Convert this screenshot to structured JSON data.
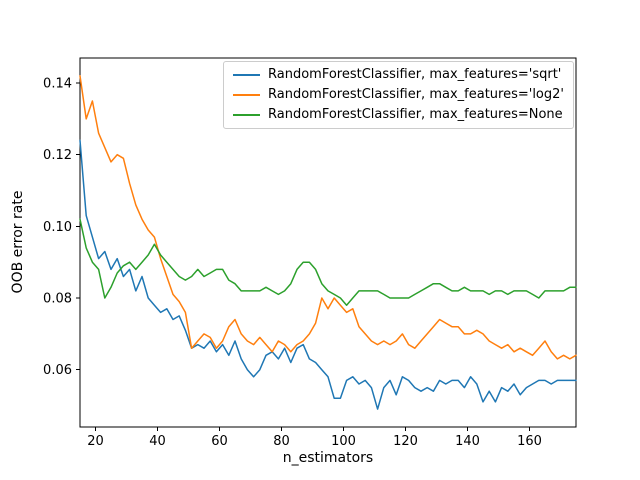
{
  "figure": {
    "background": "#ffffff"
  },
  "chart_data": {
    "type": "line",
    "title": "",
    "xlabel": "n_estimators",
    "ylabel": "OOB error rate",
    "xlim": [
      15,
      175
    ],
    "ylim": [
      0.044,
      0.147
    ],
    "xticks": [
      20,
      40,
      60,
      80,
      100,
      120,
      140,
      160
    ],
    "yticks": [
      0.06,
      0.08,
      0.1,
      0.12,
      0.14
    ],
    "grid": false,
    "legend_position": "upper right",
    "x": [
      15,
      17,
      19,
      21,
      23,
      25,
      27,
      29,
      31,
      33,
      35,
      37,
      39,
      41,
      43,
      45,
      47,
      49,
      51,
      53,
      55,
      57,
      59,
      61,
      63,
      65,
      67,
      69,
      71,
      73,
      75,
      77,
      79,
      81,
      83,
      85,
      87,
      89,
      91,
      93,
      95,
      97,
      99,
      101,
      103,
      105,
      107,
      109,
      111,
      113,
      115,
      117,
      119,
      121,
      123,
      125,
      127,
      129,
      131,
      133,
      135,
      137,
      139,
      141,
      143,
      145,
      147,
      149,
      151,
      153,
      155,
      157,
      159,
      161,
      163,
      165,
      167,
      169,
      171,
      173,
      175
    ],
    "series": [
      {
        "key": "sqrt",
        "name": "RandomForestClassifier, max_features='sqrt'",
        "color": "#1f77b4",
        "values": [
          0.124,
          0.103,
          0.097,
          0.091,
          0.093,
          0.088,
          0.091,
          0.086,
          0.088,
          0.082,
          0.086,
          0.08,
          0.078,
          0.076,
          0.077,
          0.074,
          0.075,
          0.071,
          0.066,
          0.067,
          0.066,
          0.068,
          0.065,
          0.067,
          0.064,
          0.068,
          0.063,
          0.06,
          0.058,
          0.06,
          0.064,
          0.065,
          0.063,
          0.066,
          0.062,
          0.066,
          0.067,
          0.063,
          0.062,
          0.06,
          0.058,
          0.052,
          0.052,
          0.057,
          0.058,
          0.056,
          0.057,
          0.055,
          0.049,
          0.055,
          0.057,
          0.053,
          0.058,
          0.057,
          0.055,
          0.054,
          0.055,
          0.054,
          0.057,
          0.056,
          0.057,
          0.057,
          0.055,
          0.058,
          0.056,
          0.051,
          0.054,
          0.051,
          0.055,
          0.054,
          0.056,
          0.053,
          0.055,
          0.056,
          0.057,
          0.057,
          0.056,
          0.057,
          0.057,
          0.057,
          0.057
        ]
      },
      {
        "key": "log2",
        "name": "RandomForestClassifier, max_features='log2'",
        "color": "#ff7f0e",
        "values": [
          0.142,
          0.13,
          0.135,
          0.126,
          0.122,
          0.118,
          0.12,
          0.119,
          0.112,
          0.106,
          0.102,
          0.099,
          0.097,
          0.091,
          0.086,
          0.081,
          0.079,
          0.076,
          0.066,
          0.068,
          0.07,
          0.069,
          0.066,
          0.068,
          0.072,
          0.074,
          0.07,
          0.068,
          0.067,
          0.069,
          0.067,
          0.065,
          0.068,
          0.067,
          0.065,
          0.067,
          0.068,
          0.07,
          0.073,
          0.08,
          0.077,
          0.08,
          0.078,
          0.076,
          0.077,
          0.072,
          0.07,
          0.068,
          0.067,
          0.068,
          0.067,
          0.068,
          0.07,
          0.067,
          0.066,
          0.068,
          0.07,
          0.072,
          0.074,
          0.073,
          0.072,
          0.072,
          0.07,
          0.07,
          0.071,
          0.07,
          0.068,
          0.067,
          0.066,
          0.067,
          0.065,
          0.066,
          0.065,
          0.064,
          0.066,
          0.068,
          0.065,
          0.063,
          0.064,
          0.063,
          0.064
        ]
      },
      {
        "key": "none",
        "name": "RandomForestClassifier, max_features=None",
        "color": "#2ca02c",
        "values": [
          0.102,
          0.094,
          0.09,
          0.088,
          0.08,
          0.083,
          0.087,
          0.089,
          0.09,
          0.088,
          0.09,
          0.092,
          0.095,
          0.092,
          0.09,
          0.088,
          0.086,
          0.085,
          0.086,
          0.088,
          0.086,
          0.087,
          0.088,
          0.088,
          0.085,
          0.084,
          0.082,
          0.082,
          0.082,
          0.082,
          0.083,
          0.082,
          0.081,
          0.082,
          0.084,
          0.088,
          0.09,
          0.09,
          0.088,
          0.084,
          0.082,
          0.081,
          0.08,
          0.078,
          0.08,
          0.082,
          0.082,
          0.082,
          0.082,
          0.081,
          0.08,
          0.08,
          0.08,
          0.08,
          0.081,
          0.082,
          0.083,
          0.084,
          0.084,
          0.083,
          0.082,
          0.082,
          0.083,
          0.082,
          0.082,
          0.082,
          0.081,
          0.082,
          0.082,
          0.081,
          0.082,
          0.082,
          0.082,
          0.081,
          0.08,
          0.082,
          0.082,
          0.082,
          0.082,
          0.083,
          0.083
        ]
      }
    ]
  }
}
